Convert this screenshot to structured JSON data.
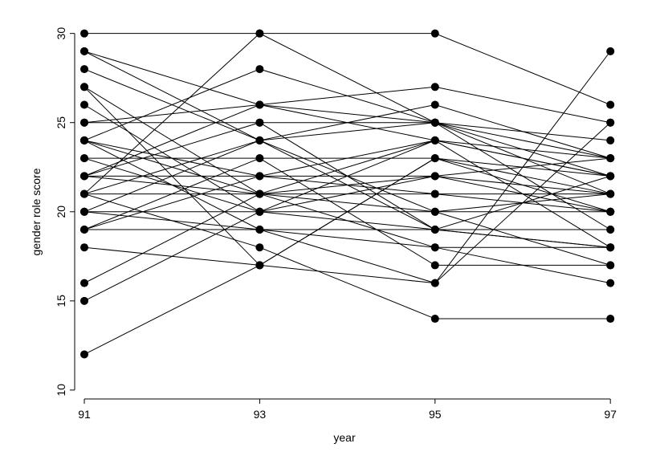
{
  "chart_data": {
    "type": "line",
    "x_label": "year",
    "y_label": "gender role score",
    "x": [
      91,
      93,
      95,
      97
    ],
    "color": "#000000",
    "series": [
      {
        "values": [
          30,
          30,
          30,
          26
        ]
      },
      {
        "values": [
          29,
          26,
          24,
          22
        ]
      },
      {
        "values": [
          29,
          24,
          19,
          18
        ]
      },
      {
        "values": [
          28,
          24,
          20,
          17
        ]
      },
      {
        "values": [
          27,
          21,
          18,
          16
        ]
      },
      {
        "values": [
          27,
          17,
          23,
          21
        ]
      },
      {
        "values": [
          26,
          20,
          22,
          20
        ]
      },
      {
        "values": [
          25,
          25,
          25,
          24
        ]
      },
      {
        "values": [
          24,
          28,
          25,
          19
        ]
      },
      {
        "values": [
          24,
          22,
          21,
          20
        ]
      },
      {
        "values": [
          24,
          19,
          16,
          29
        ]
      },
      {
        "values": [
          23,
          23,
          23,
          22
        ]
      },
      {
        "values": [
          23,
          20,
          19,
          18
        ]
      },
      {
        "values": [
          22,
          26,
          27,
          25
        ]
      },
      {
        "values": [
          22,
          22,
          22,
          23
        ]
      },
      {
        "values": [
          22,
          21,
          20,
          21
        ]
      },
      {
        "values": [
          21,
          24,
          25,
          22
        ]
      },
      {
        "values": [
          21,
          21,
          21,
          21
        ]
      },
      {
        "values": [
          21,
          18,
          14,
          14
        ]
      },
      {
        "values": [
          20,
          20,
          20,
          20
        ]
      },
      {
        "values": [
          20,
          24,
          26,
          23
        ]
      },
      {
        "values": [
          19,
          19,
          19,
          19
        ]
      },
      {
        "values": [
          19,
          22,
          24,
          18
        ]
      },
      {
        "values": [
          18,
          17,
          16,
          25
        ]
      },
      {
        "values": [
          16,
          21,
          24,
          23
        ]
      },
      {
        "values": [
          15,
          20,
          24,
          22
        ]
      },
      {
        "values": [
          12,
          17,
          23,
          20
        ]
      },
      {
        "values": [
          21,
          30,
          25,
          23
        ]
      },
      {
        "values": [
          19,
          23,
          17,
          17
        ]
      },
      {
        "values": [
          24,
          21,
          22,
          21
        ]
      },
      {
        "values": [
          25,
          26,
          25,
          21
        ]
      },
      {
        "values": [
          20,
          19,
          18,
          18
        ]
      },
      {
        "values": [
          22,
          25,
          19,
          22
        ]
      }
    ],
    "xlim": [
      90.89,
      97.09
    ],
    "xticks": [
      91,
      93,
      95,
      97
    ],
    "ylim": [
      9.5,
      30.3
    ],
    "yticks": [
      10,
      15,
      20,
      25,
      30
    ]
  }
}
